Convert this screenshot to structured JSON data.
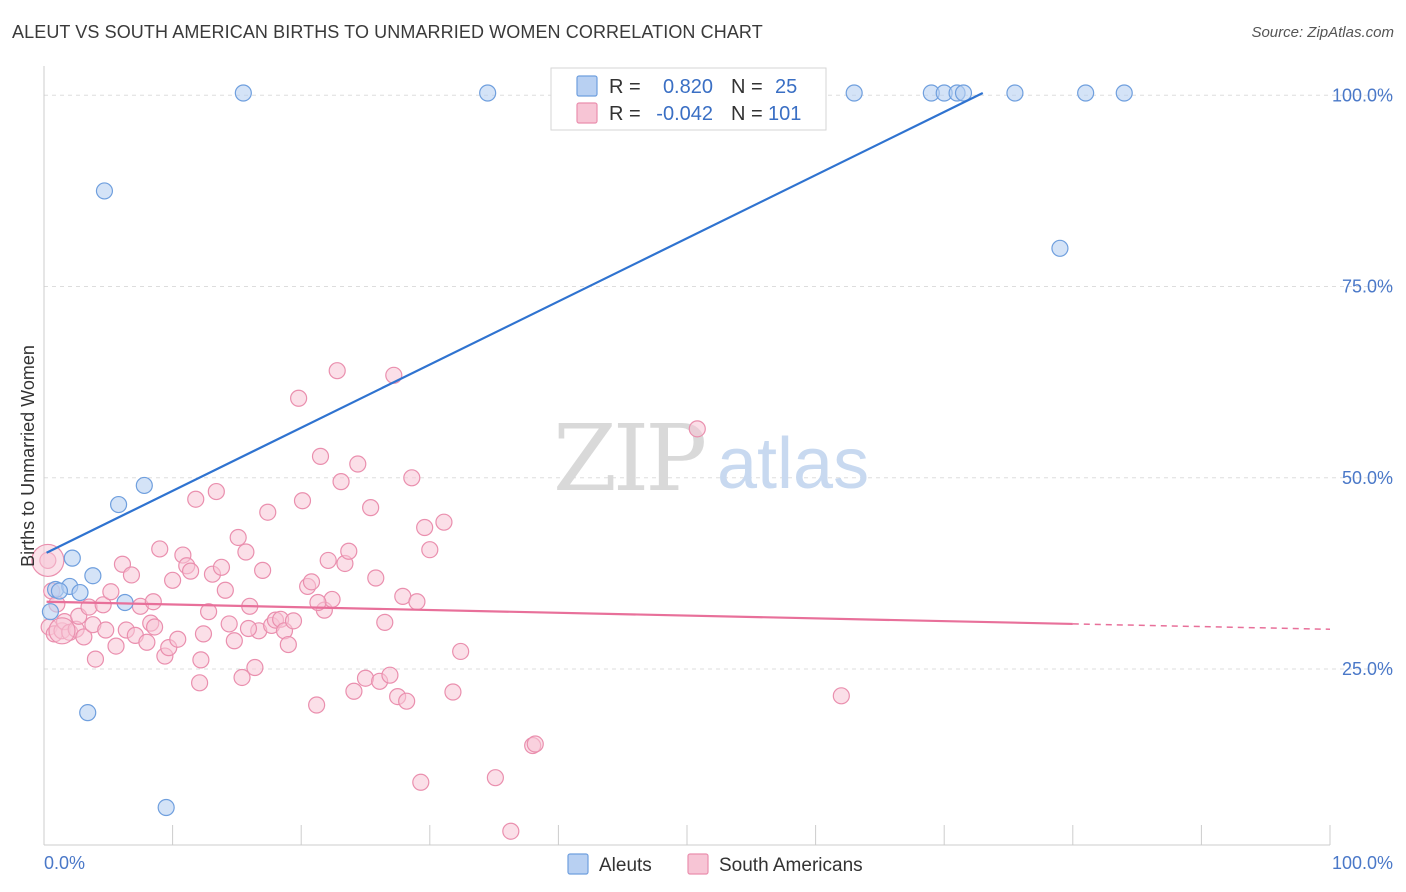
{
  "title": "ALEUT VS SOUTH AMERICAN BIRTHS TO UNMARRIED WOMEN CORRELATION CHART",
  "source": "Source: ZipAtlas.com",
  "watermark": {
    "part1": "ZIP",
    "part2": "atlas"
  },
  "colors": {
    "aleut_fill": "#b8d0f2",
    "aleut_stroke": "#6f9fde",
    "aleut_line": "#2f73d0",
    "sa_fill": "#f7c5d5",
    "sa_stroke": "#ea8fae",
    "sa_line": "#e8709a",
    "grid": "#dddddd",
    "axis_text": "#4a78c8"
  },
  "legend": {
    "rows": [
      {
        "r_label": "R =",
        "r_value": "0.820",
        "n_label": "N =",
        "n_value": "25"
      },
      {
        "r_label": "R =",
        "r_value": "-0.042",
        "n_label": "N =",
        "n_value": "101"
      }
    ]
  },
  "bottom_legend": {
    "aleut": "Aleuts",
    "south_american": "South Americans"
  },
  "chart_data": {
    "type": "scatter",
    "title": "ALEUT VS SOUTH AMERICAN BIRTHS TO UNMARRIED WOMEN CORRELATION CHART",
    "xlabel": "",
    "ylabel": "Births to Unmarried Women",
    "xlim": [
      0,
      100
    ],
    "ylim": [
      2,
      102
    ],
    "x_tick_labels": [
      "0.0%",
      "100.0%"
    ],
    "y_ticks": [
      25,
      50,
      75,
      100
    ],
    "y_tick_labels": [
      "25.0%",
      "50.0%",
      "75.0%",
      "100.0%"
    ],
    "grid": true,
    "legend_position": "top-center",
    "series": [
      {
        "name": "Aleuts",
        "R": 0.82,
        "N": 25,
        "trend": {
          "x": [
            0.2,
            73.0
          ],
          "y": [
            40.2,
            100.3
          ]
        },
        "points": [
          [
            15.5,
            100.3
          ],
          [
            34.5,
            100.3
          ],
          [
            55.0,
            100.3
          ],
          [
            63.0,
            100.3
          ],
          [
            69.0,
            100.3
          ],
          [
            70.0,
            100.3
          ],
          [
            71.0,
            100.3
          ],
          [
            71.5,
            100.3
          ],
          [
            75.5,
            100.3
          ],
          [
            81.0,
            100.3
          ],
          [
            84.0,
            100.3
          ],
          [
            4.7,
            87.5
          ],
          [
            79.0,
            80.0
          ],
          [
            7.8,
            49.0
          ],
          [
            5.8,
            46.5
          ],
          [
            2.2,
            39.5
          ],
          [
            3.8,
            37.2
          ],
          [
            0.9,
            35.4
          ],
          [
            2.0,
            35.8
          ],
          [
            2.8,
            35.0
          ],
          [
            6.3,
            33.7
          ],
          [
            0.5,
            32.5
          ],
          [
            3.4,
            19.3
          ],
          [
            9.5,
            6.9
          ],
          [
            1.2,
            35.2
          ]
        ]
      },
      {
        "name": "South Americans",
        "R": -0.042,
        "N": 101,
        "trend": {
          "x": [
            0.2,
            80.0
          ],
          "y": [
            33.8,
            30.9
          ]
        },
        "trend_dashed": {
          "x": [
            80.0,
            100.0
          ],
          "y": [
            30.9,
            30.2
          ]
        },
        "points": [
          [
            0.3,
            39.2
          ],
          [
            0.6,
            35.2
          ],
          [
            1.0,
            33.5
          ],
          [
            0.4,
            30.5
          ],
          [
            0.8,
            29.6
          ],
          [
            1.4,
            30.0
          ],
          [
            1.6,
            31.2
          ],
          [
            2.0,
            29.8
          ],
          [
            2.5,
            30.2
          ],
          [
            2.7,
            31.9
          ],
          [
            3.1,
            29.2
          ],
          [
            3.5,
            33.1
          ],
          [
            3.8,
            30.8
          ],
          [
            4.0,
            26.3
          ],
          [
            4.6,
            33.4
          ],
          [
            4.8,
            30.1
          ],
          [
            5.2,
            35.1
          ],
          [
            5.6,
            28.0
          ],
          [
            6.1,
            38.7
          ],
          [
            6.4,
            30.1
          ],
          [
            6.8,
            37.3
          ],
          [
            7.1,
            29.4
          ],
          [
            7.5,
            33.2
          ],
          [
            8.0,
            28.5
          ],
          [
            8.3,
            31.0
          ],
          [
            8.6,
            30.5
          ],
          [
            9.0,
            40.7
          ],
          [
            9.4,
            26.7
          ],
          [
            9.7,
            27.8
          ],
          [
            10.0,
            36.6
          ],
          [
            10.4,
            28.9
          ],
          [
            10.8,
            39.9
          ],
          [
            11.1,
            38.5
          ],
          [
            11.4,
            37.8
          ],
          [
            11.8,
            47.2
          ],
          [
            12.1,
            23.2
          ],
          [
            12.4,
            29.6
          ],
          [
            12.8,
            32.5
          ],
          [
            13.1,
            37.4
          ],
          [
            13.4,
            48.2
          ],
          [
            13.8,
            38.3
          ],
          [
            14.1,
            35.3
          ],
          [
            14.4,
            30.9
          ],
          [
            14.8,
            28.7
          ],
          [
            15.1,
            42.2
          ],
          [
            15.4,
            23.9
          ],
          [
            15.7,
            40.3
          ],
          [
            16.0,
            33.2
          ],
          [
            16.4,
            25.2
          ],
          [
            16.7,
            30.0
          ],
          [
            17.0,
            37.9
          ],
          [
            17.4,
            45.5
          ],
          [
            17.7,
            30.7
          ],
          [
            18.0,
            31.4
          ],
          [
            18.4,
            31.5
          ],
          [
            18.7,
            30.0
          ],
          [
            19.0,
            28.2
          ],
          [
            19.4,
            31.3
          ],
          [
            19.8,
            60.4
          ],
          [
            20.1,
            47.0
          ],
          [
            20.5,
            35.8
          ],
          [
            20.8,
            36.4
          ],
          [
            21.2,
            20.3
          ],
          [
            21.5,
            52.8
          ],
          [
            21.8,
            32.7
          ],
          [
            22.1,
            39.2
          ],
          [
            22.4,
            34.1
          ],
          [
            22.8,
            64.0
          ],
          [
            23.1,
            49.5
          ],
          [
            23.4,
            38.8
          ],
          [
            23.7,
            40.4
          ],
          [
            24.1,
            22.1
          ],
          [
            24.4,
            51.8
          ],
          [
            25.0,
            23.8
          ],
          [
            25.4,
            46.1
          ],
          [
            25.8,
            36.9
          ],
          [
            26.1,
            23.4
          ],
          [
            26.5,
            31.1
          ],
          [
            26.9,
            24.2
          ],
          [
            27.2,
            63.4
          ],
          [
            27.5,
            21.4
          ],
          [
            27.9,
            34.5
          ],
          [
            28.2,
            20.8
          ],
          [
            28.6,
            50.0
          ],
          [
            29.0,
            33.8
          ],
          [
            29.3,
            10.2
          ],
          [
            29.6,
            43.5
          ],
          [
            30.0,
            40.6
          ],
          [
            31.1,
            44.2
          ],
          [
            31.8,
            22.0
          ],
          [
            32.4,
            27.3
          ],
          [
            35.1,
            10.8
          ],
          [
            36.3,
            3.8
          ],
          [
            38.0,
            15.0
          ],
          [
            50.8,
            56.4
          ],
          [
            12.2,
            26.2
          ],
          [
            21.3,
            33.7
          ],
          [
            38.2,
            15.2
          ],
          [
            62.0,
            21.5
          ],
          [
            8.5,
            33.8
          ],
          [
            15.9,
            30.3
          ]
        ]
      }
    ]
  }
}
